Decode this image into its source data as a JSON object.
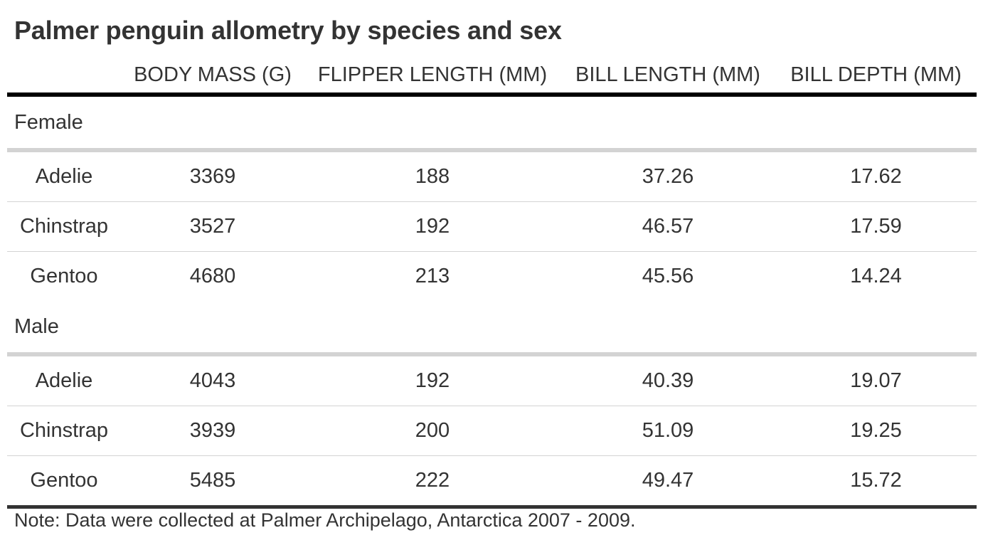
{
  "chart_data": {
    "type": "table",
    "title": "Palmer penguin allometry by species and sex",
    "columns": [
      "Body Mass (g)",
      "Flipper Length (mm)",
      "Bill Length (mm)",
      "Bill Depth (mm)"
    ],
    "groups": [
      {
        "name": "Female",
        "rows": [
          {
            "species": "Adelie",
            "values": [
              "3369",
              "188",
              "37.26",
              "17.62"
            ]
          },
          {
            "species": "Chinstrap",
            "values": [
              "3527",
              "192",
              "46.57",
              "17.59"
            ]
          },
          {
            "species": "Gentoo",
            "values": [
              "4680",
              "213",
              "45.56",
              "14.24"
            ]
          }
        ]
      },
      {
        "name": "Male",
        "rows": [
          {
            "species": "Adelie",
            "values": [
              "4043",
              "192",
              "40.39",
              "19.07"
            ]
          },
          {
            "species": "Chinstrap",
            "values": [
              "3939",
              "200",
              "51.09",
              "19.25"
            ]
          },
          {
            "species": "Gentoo",
            "values": [
              "5485",
              "222",
              "49.47",
              "15.72"
            ]
          }
        ]
      }
    ],
    "source_note": "Note: Data were collected at Palmer Archipelago, Antarctica 2007 - 2009."
  }
}
